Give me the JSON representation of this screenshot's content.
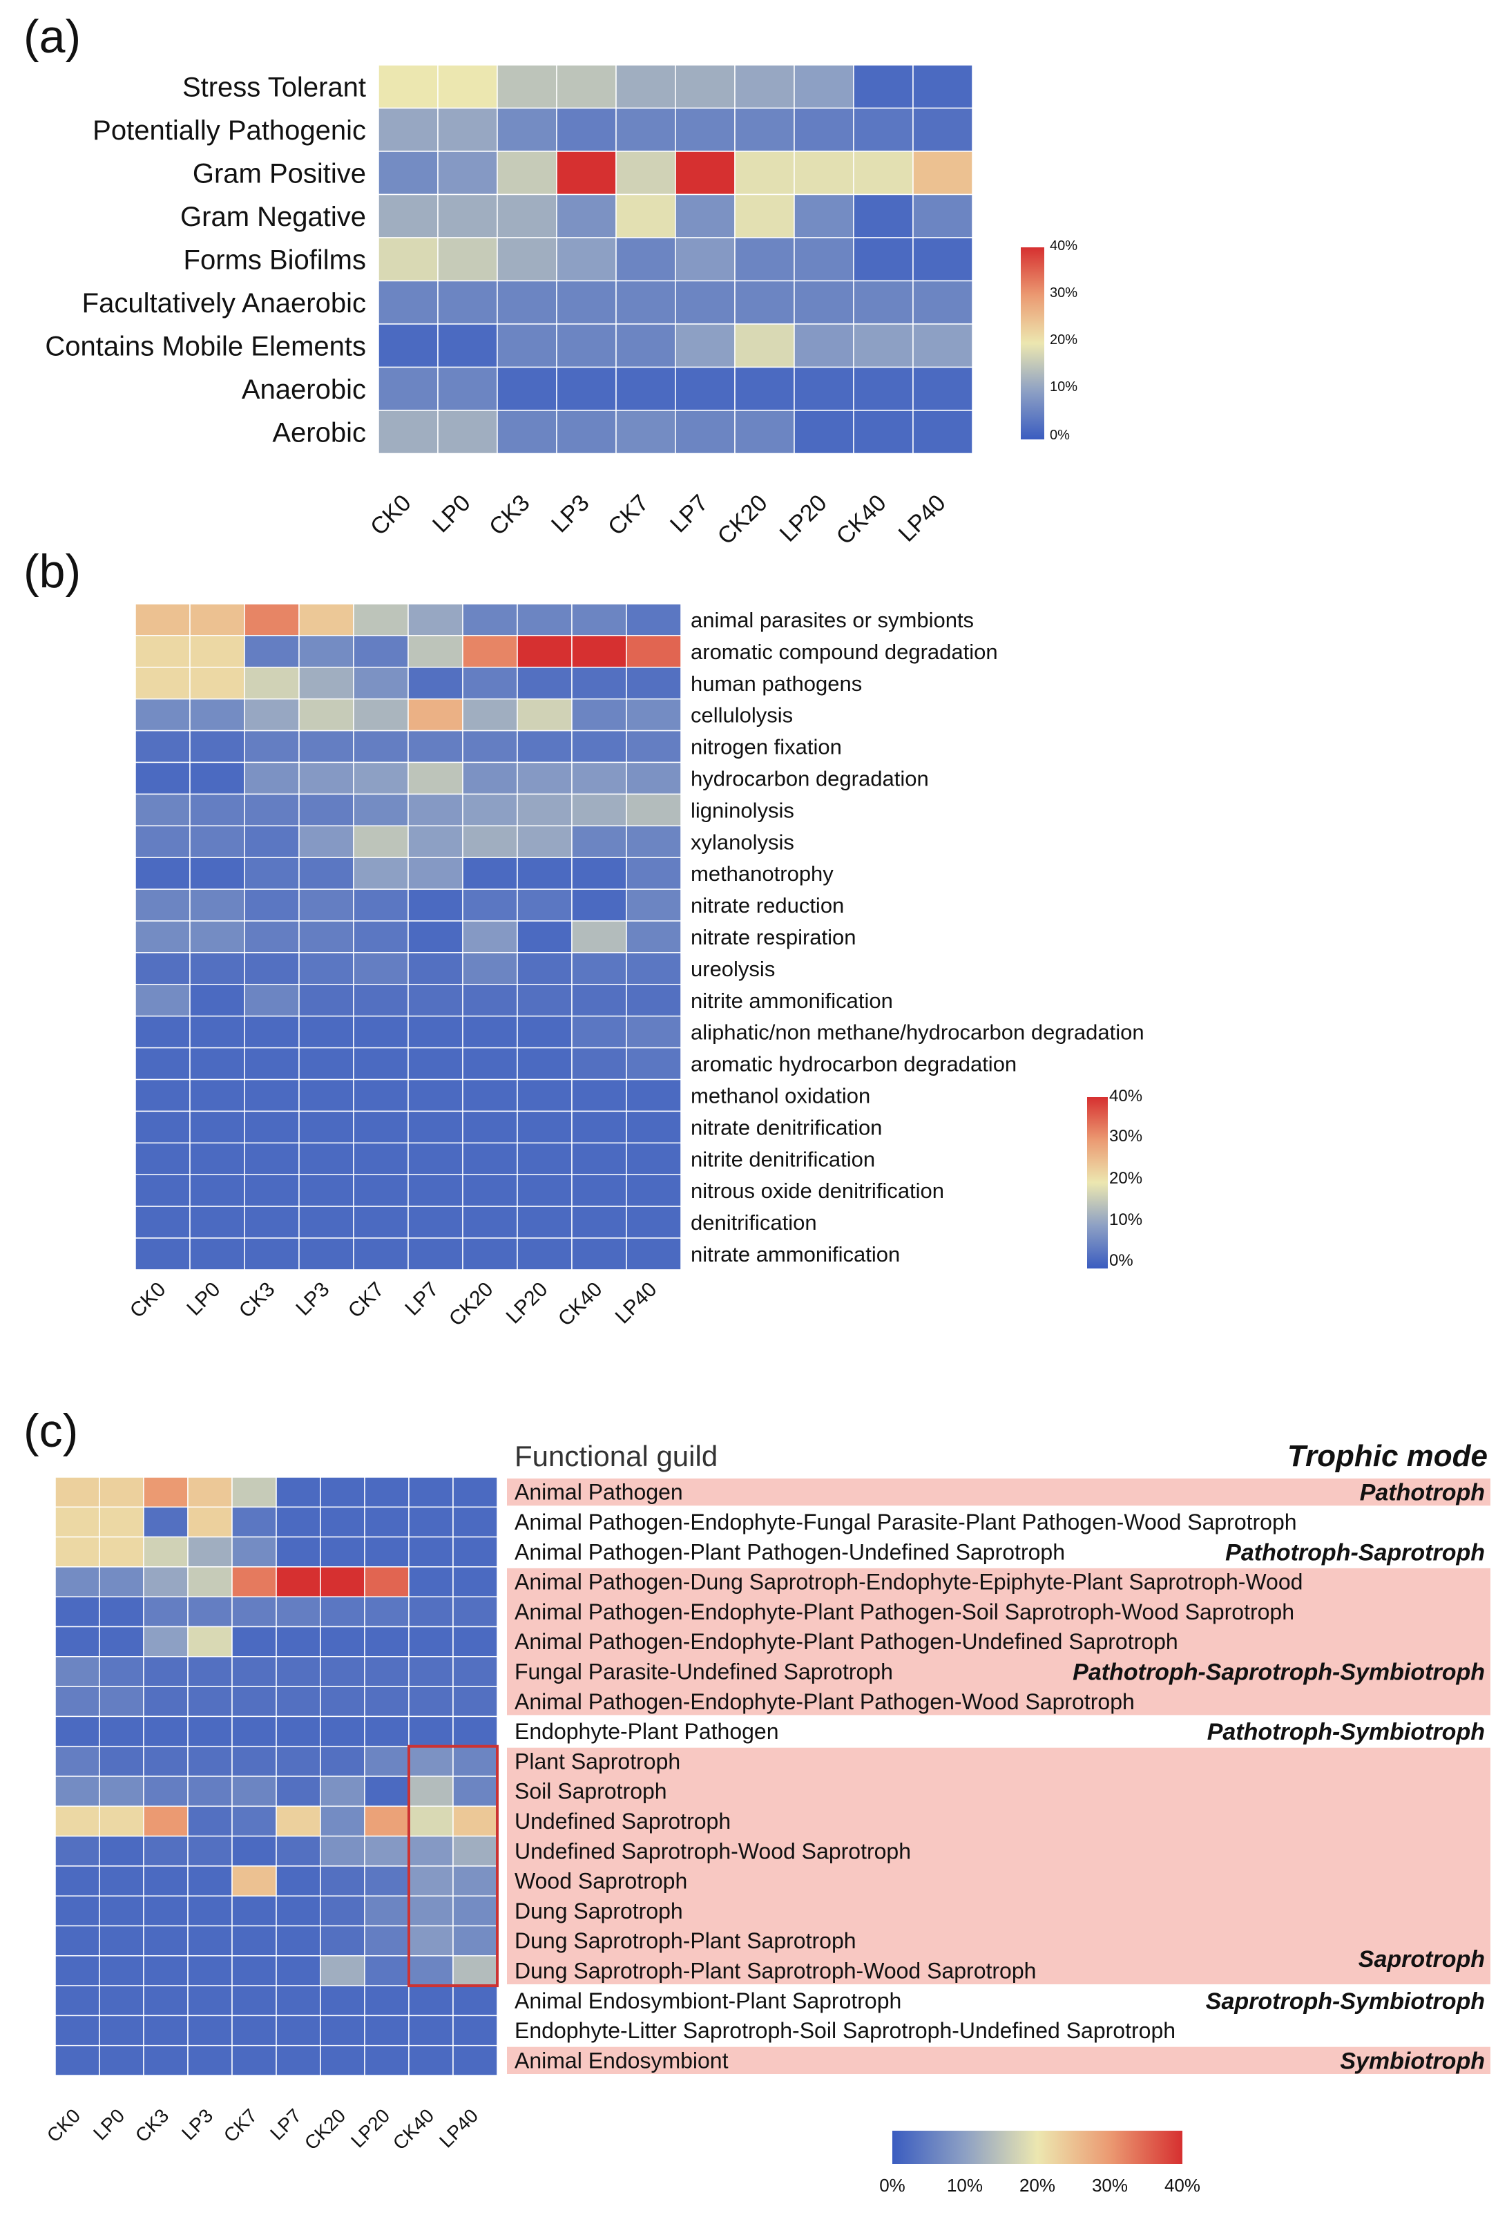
{
  "chart_data": [
    {
      "type": "heatmap",
      "panel_label": "(a)",
      "columns": [
        "CK0",
        "LP0",
        "CK3",
        "LP3",
        "CK7",
        "LP7",
        "CK20",
        "LP20",
        "CK40",
        "LP40"
      ],
      "rows": [
        "Stress Tolerant",
        "Potentially Pathogenic",
        "Gram Positive",
        "Gram Negative",
        "Forms Biofilms",
        "Facultatively Anaerobic",
        "Contains Mobile Elements",
        "Anaerobic",
        "Aerobic"
      ],
      "values": [
        [
          20,
          20,
          15,
          15,
          12,
          12,
          11,
          10,
          2,
          2
        ],
        [
          11,
          11,
          7,
          5,
          6,
          6,
          6,
          5,
          4,
          3
        ],
        [
          7,
          9,
          16,
          40,
          17,
          42,
          19,
          19,
          19,
          25
        ],
        [
          12,
          12,
          12,
          8,
          19,
          8,
          19,
          7,
          2,
          6
        ],
        [
          18,
          16,
          12,
          10,
          6,
          9,
          6,
          6,
          2,
          2
        ],
        [
          6,
          6,
          6,
          6,
          6,
          6,
          6,
          6,
          6,
          6
        ],
        [
          2,
          2,
          6,
          6,
          6,
          10,
          18,
          9,
          10,
          10
        ],
        [
          6,
          6,
          2,
          2,
          2,
          2,
          2,
          2,
          2,
          2
        ],
        [
          12,
          12,
          6,
          6,
          7,
          6,
          6,
          2,
          2,
          2
        ]
      ],
      "colorbar": {
        "min": 0,
        "max": 40,
        "ticks": [
          "40%",
          "30%",
          "20%",
          "10%",
          "0%"
        ]
      }
    },
    {
      "type": "heatmap",
      "panel_label": "(b)",
      "columns": [
        "CK0",
        "LP0",
        "CK3",
        "LP3",
        "CK7",
        "LP7",
        "CK20",
        "LP20",
        "CK40",
        "LP40"
      ],
      "rows": [
        "animal parasites or symbionts",
        "aromatic compound degradation",
        "human pathogens",
        "cellulolysis",
        "nitrogen fixation",
        "hydrocarbon degradation",
        "ligninolysis",
        "xylanolysis",
        "methanotrophy",
        "nitrate reduction",
        "nitrate respiration",
        "ureolysis",
        "nitrite ammonification",
        "aliphatic/non methane/hydrocarbon degradation",
        "aromatic hydrocarbon degradation",
        "methanol oxidation",
        "nitrate denitrification",
        "nitrite denitrification",
        "nitrous oxide denitrification",
        "denitrification",
        "nitrate ammonification"
      ],
      "values": [
        [
          25,
          25,
          32,
          24,
          15,
          11,
          6,
          6,
          6,
          4
        ],
        [
          22,
          22,
          5,
          7,
          5,
          15,
          32,
          40,
          40,
          35
        ],
        [
          22,
          22,
          17,
          12,
          8,
          3,
          5,
          3,
          3,
          3
        ],
        [
          7,
          7,
          11,
          16,
          13,
          27,
          12,
          17,
          6,
          7
        ],
        [
          3,
          3,
          5,
          5,
          5,
          5,
          5,
          4,
          4,
          5
        ],
        [
          2,
          2,
          8,
          9,
          10,
          15,
          8,
          9,
          9,
          8
        ],
        [
          6,
          5,
          5,
          5,
          7,
          9,
          10,
          11,
          12,
          14
        ],
        [
          5,
          5,
          4,
          9,
          15,
          10,
          12,
          11,
          6,
          6
        ],
        [
          2,
          2,
          4,
          4,
          10,
          9,
          2,
          2,
          2,
          5
        ],
        [
          6,
          6,
          4,
          5,
          4,
          2,
          4,
          4,
          2,
          6
        ],
        [
          7,
          7,
          5,
          5,
          4,
          2,
          9,
          2,
          14,
          6
        ],
        [
          3,
          3,
          3,
          4,
          5,
          3,
          6,
          3,
          4,
          4
        ],
        [
          7,
          2,
          6,
          3,
          3,
          3,
          3,
          3,
          3,
          3
        ],
        [
          2,
          2,
          2,
          2,
          2,
          2,
          2,
          2,
          4,
          5
        ],
        [
          2,
          2,
          2,
          2,
          2,
          2,
          2,
          2,
          3,
          4
        ],
        [
          2,
          2,
          2,
          2,
          2,
          2,
          2,
          2,
          2,
          2
        ],
        [
          2,
          2,
          2,
          2,
          2,
          2,
          2,
          2,
          2,
          2
        ],
        [
          2,
          2,
          2,
          2,
          2,
          2,
          2,
          2,
          2,
          2
        ],
        [
          2,
          2,
          2,
          2,
          2,
          2,
          2,
          2,
          2,
          2
        ],
        [
          2,
          2,
          2,
          2,
          2,
          2,
          2,
          2,
          2,
          2
        ],
        [
          2,
          2,
          2,
          2,
          2,
          2,
          2,
          2,
          2,
          2
        ]
      ],
      "colorbar": {
        "min": 0,
        "max": 40,
        "ticks": [
          "40%",
          "30%",
          "20%",
          "10%",
          "0%"
        ]
      }
    },
    {
      "type": "heatmap",
      "panel_label": "(c)",
      "header_left": "Functional guild",
      "header_right": "Trophic mode",
      "columns": [
        "CK0",
        "LP0",
        "CK3",
        "LP3",
        "CK7",
        "LP7",
        "CK20",
        "LP20",
        "CK40",
        "LP40"
      ],
      "rows": [
        "Animal Pathogen",
        "Animal Pathogen-Endophyte-Fungal Parasite-Plant Pathogen-Wood Saprotroph",
        "Animal Pathogen-Plant Pathogen-Undefined Saprotroph",
        "Animal Pathogen-Dung Saprotroph-Endophyte-Epiphyte-Plant Saprotroph-Wood",
        "Animal Pathogen-Endophyte-Plant Pathogen-Soil Saprotroph-Wood Saprotroph",
        "Animal Pathogen-Endophyte-Plant Pathogen-Undefined Saprotroph",
        "Fungal Parasite-Undefined Saprotroph",
        "Animal Pathogen-Endophyte-Plant Pathogen-Wood Saprotroph",
        "Endophyte-Plant Pathogen",
        "Plant Saprotroph",
        "Soil Saprotroph",
        "Undefined Saprotroph",
        "Undefined Saprotroph-Wood Saprotroph",
        "Wood Saprotroph",
        "Dung Saprotroph",
        "Dung Saprotroph-Plant Saprotroph",
        "Dung Saprotroph-Plant Saprotroph-Wood Saprotroph",
        "Animal Endosymbiont-Plant Saprotroph",
        "Endophyte-Litter Saprotroph-Soil Saprotroph-Undefined Saprotroph",
        "Animal Endosymbiont"
      ],
      "values": [
        [
          23,
          23,
          30,
          24,
          16,
          2,
          2,
          2,
          2,
          2
        ],
        [
          22,
          22,
          3,
          23,
          4,
          2,
          2,
          2,
          2,
          2
        ],
        [
          22,
          22,
          17,
          12,
          7,
          2,
          2,
          2,
          2,
          2
        ],
        [
          7,
          7,
          11,
          16,
          33,
          40,
          40,
          35,
          2,
          2
        ],
        [
          2,
          2,
          5,
          5,
          5,
          5,
          4,
          4,
          3,
          3
        ],
        [
          2,
          2,
          10,
          18,
          2,
          2,
          2,
          2,
          2,
          2
        ],
        [
          6,
          4,
          3,
          3,
          3,
          3,
          3,
          3,
          3,
          3
        ],
        [
          5,
          5,
          3,
          3,
          3,
          3,
          3,
          3,
          3,
          3
        ],
        [
          2,
          2,
          2,
          2,
          2,
          2,
          2,
          2,
          2,
          2
        ],
        [
          5,
          3,
          3,
          3,
          3,
          3,
          3,
          6,
          8,
          6
        ],
        [
          7,
          7,
          5,
          5,
          6,
          3,
          8,
          2,
          14,
          6
        ],
        [
          22,
          22,
          30,
          3,
          4,
          23,
          7,
          29,
          18,
          24
        ],
        [
          3,
          2,
          3,
          3,
          2,
          3,
          8,
          9,
          9,
          12
        ],
        [
          2,
          2,
          2,
          2,
          25,
          2,
          3,
          4,
          9,
          8
        ],
        [
          2,
          2,
          2,
          2,
          2,
          2,
          3,
          6,
          8,
          7
        ],
        [
          2,
          2,
          2,
          2,
          2,
          2,
          3,
          5,
          9,
          7
        ],
        [
          2,
          2,
          2,
          2,
          2,
          2,
          12,
          4,
          6,
          14
        ],
        [
          2,
          2,
          2,
          2,
          2,
          2,
          2,
          2,
          2,
          2
        ],
        [
          2,
          2,
          2,
          2,
          2,
          2,
          2,
          2,
          2,
          2
        ],
        [
          2,
          2,
          2,
          2,
          2,
          2,
          2,
          2,
          2,
          2
        ]
      ],
      "trophic_modes": [
        {
          "label": "Pathotroph",
          "from_row": 0,
          "to_row": 0,
          "label_row": 0,
          "highlight": true
        },
        {
          "label": "Pathotroph-Saprotroph",
          "from_row": 1,
          "to_row": 2,
          "label_row": 2,
          "highlight": false
        },
        {
          "label": "Pathotroph-Saprotroph-Symbiotroph",
          "from_row": 3,
          "to_row": 7,
          "label_row": 6,
          "highlight": true
        },
        {
          "label": "Pathotroph-Symbiotroph",
          "from_row": 8,
          "to_row": 8,
          "label_row": 8,
          "highlight": false
        },
        {
          "label": "Saprotroph",
          "from_row": 9,
          "to_row": 16,
          "label_row": 15.6,
          "highlight": true
        },
        {
          "label": "Saprotroph-Symbiotroph",
          "from_row": 17,
          "to_row": 18,
          "label_row": 17,
          "highlight": false
        },
        {
          "label": "Symbiotroph",
          "from_row": 19,
          "to_row": 19,
          "label_row": 19,
          "highlight": true
        }
      ],
      "highlight_box": {
        "from_col": 8,
        "to_col": 9,
        "from_row": 9,
        "to_row": 16,
        "color": "#cc3333"
      },
      "colorbar": {
        "min": 0,
        "max": 40,
        "ticks": [
          "0%",
          "10%",
          "20%",
          "30%",
          "40%"
        ]
      }
    }
  ],
  "colors": {
    "low": "#3a5cc0",
    "mid_low": "#8da0c4",
    "mid": "#ece7b0",
    "mid_high": "#eb9a72",
    "high": "#d63030",
    "guild_highlight": "#f8c8c2",
    "box": "#cc3333"
  }
}
